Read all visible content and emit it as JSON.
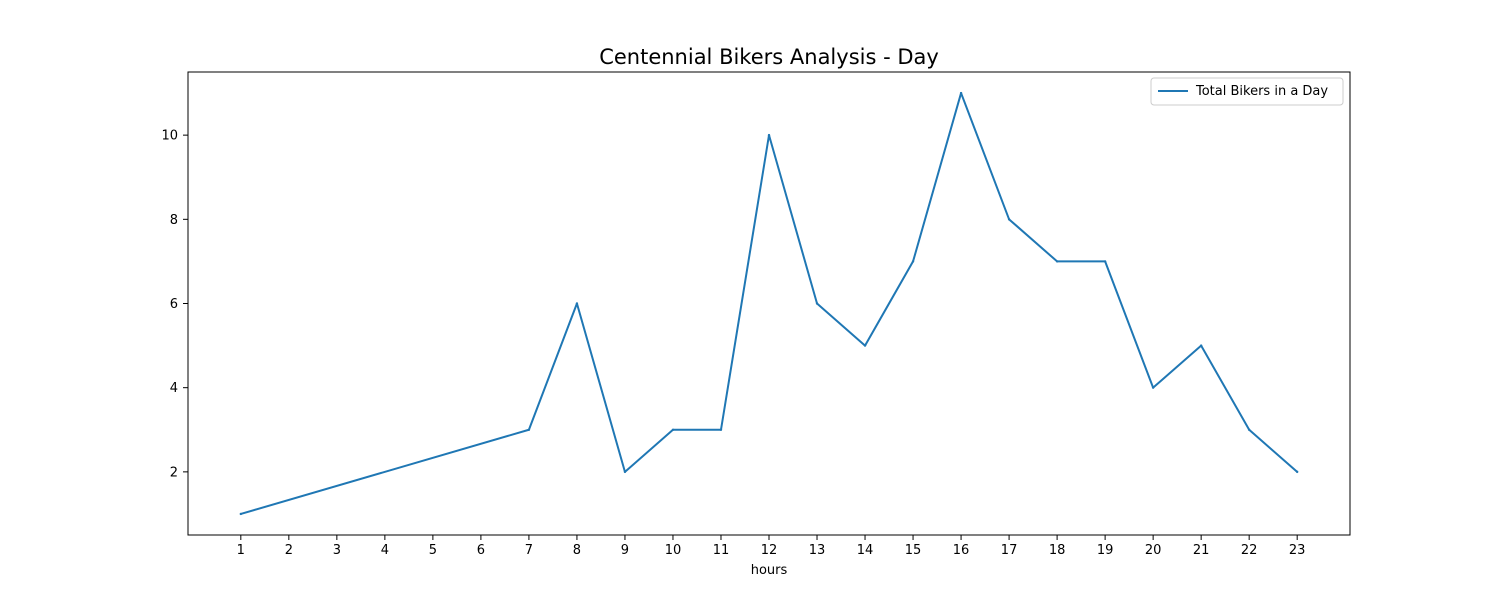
{
  "chart_data": {
    "type": "line",
    "title": "Centennial Bikers Analysis - Day",
    "xlabel": "hours",
    "ylabel": "",
    "x": [
      1,
      2,
      3,
      4,
      5,
      6,
      7,
      8,
      9,
      10,
      11,
      12,
      13,
      14,
      15,
      16,
      17,
      18,
      19,
      20,
      21,
      22,
      23
    ],
    "x_ticks": [
      1,
      2,
      3,
      4,
      5,
      6,
      7,
      8,
      9,
      10,
      11,
      12,
      13,
      14,
      15,
      16,
      17,
      18,
      19,
      20,
      21,
      22,
      23
    ],
    "y_ticks": [
      2,
      4,
      6,
      8,
      10
    ],
    "xlim": [
      -0.1,
      24.1
    ],
    "ylim": [
      0.5,
      11.5
    ],
    "grid": false,
    "legend_position": "top-right",
    "points": [
      {
        "x": 1,
        "y": 1
      },
      {
        "x": 7,
        "y": 3
      },
      {
        "x": 8,
        "y": 6
      },
      {
        "x": 9,
        "y": 2
      },
      {
        "x": 10,
        "y": 3
      },
      {
        "x": 11,
        "y": 3
      },
      {
        "x": 12,
        "y": 10
      },
      {
        "x": 13,
        "y": 6
      },
      {
        "x": 14,
        "y": 5
      },
      {
        "x": 15,
        "y": 7
      },
      {
        "x": 16,
        "y": 11
      },
      {
        "x": 17,
        "y": 8
      },
      {
        "x": 18,
        "y": 7
      },
      {
        "x": 19,
        "y": 7
      },
      {
        "x": 20,
        "y": 4
      },
      {
        "x": 21,
        "y": 5
      },
      {
        "x": 22,
        "y": 3
      },
      {
        "x": 23,
        "y": 2
      }
    ],
    "series": [
      {
        "name": "Total Bikers in a Day",
        "color": "#1f77b4"
      }
    ]
  }
}
